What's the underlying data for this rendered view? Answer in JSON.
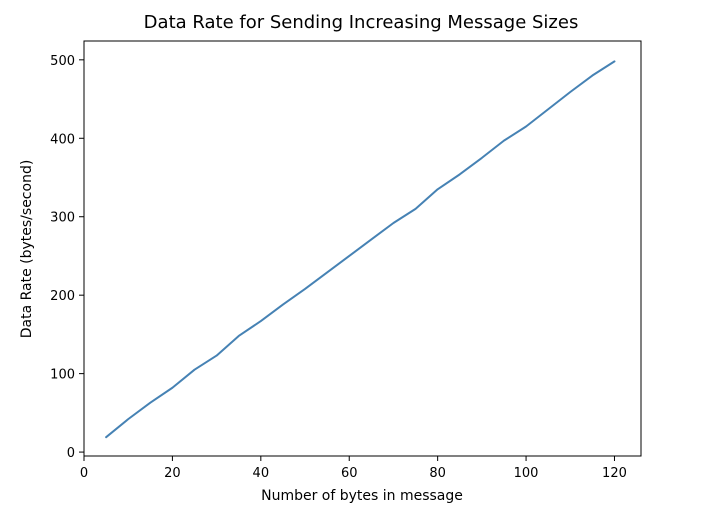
{
  "chart_data": {
    "type": "line",
    "title": "Data Rate for Sending Increasing Message Sizes",
    "xlabel": "Number of bytes in message",
    "ylabel": "Data Rate (bytes/second)",
    "xlim": [
      0,
      126
    ],
    "ylim": [
      -5,
      524
    ],
    "xticks": [
      0,
      20,
      40,
      60,
      80,
      100,
      120
    ],
    "yticks": [
      0,
      100,
      200,
      300,
      400,
      500
    ],
    "grid": false,
    "legend": "none",
    "series": [
      {
        "color": "#4682b4",
        "x": [
          5,
          10,
          15,
          20,
          25,
          30,
          35,
          40,
          45,
          50,
          55,
          60,
          65,
          70,
          75,
          80,
          85,
          90,
          95,
          100,
          105,
          110,
          115,
          120
        ],
        "y": [
          19,
          42,
          63,
          82,
          105,
          123,
          148,
          167,
          188,
          208,
          229,
          250,
          271,
          292,
          310,
          335,
          354,
          375,
          397,
          415,
          437,
          459,
          480,
          498
        ]
      }
    ]
  }
}
